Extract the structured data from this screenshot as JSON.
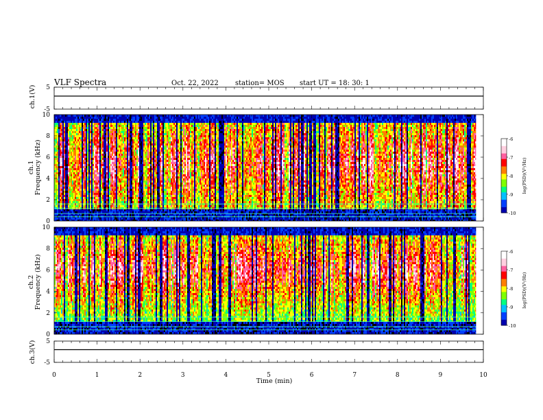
{
  "header": {
    "title": "VLF Spectra",
    "date": "Oct. 22, 2022",
    "station": "station= MOS",
    "start": "start  UT =   18: 30: 1"
  },
  "labels": {
    "ch1_voltage": "ch.1(V)",
    "ch3_voltage": "ch.3(V)",
    "ch1_prefix": "ch.1",
    "ch2_prefix": "ch.2",
    "frequency": "Frequency (kHz)",
    "time": "Time (min)",
    "colorbar": "log(PSD)(V²/Hz)"
  },
  "colors": {
    "colormap": [
      "#000000",
      "#0000b0",
      "#0040ff",
      "#00c0ff",
      "#00ff80",
      "#80ff00",
      "#ffff00",
      "#ff8000",
      "#ff0000",
      "#ff60a0",
      "#ffd0e0",
      "#ffffff"
    ]
  },
  "chart_data": [
    {
      "type": "line",
      "name": "ch1-voltage",
      "ylabel": "ch.1(V)",
      "xlim": [
        0,
        10
      ],
      "ylim": [
        -5,
        5
      ],
      "yticks": [
        "5",
        "-5"
      ],
      "x": [
        0,
        10
      ],
      "y": [
        0,
        0
      ]
    },
    {
      "type": "heatmap",
      "name": "ch1-spectrogram",
      "ylabel": "Frequency (kHz)",
      "xlim": [
        0,
        9.83
      ],
      "ylim": [
        0,
        10
      ],
      "yticks": [
        "0",
        "2",
        "4",
        "6",
        "8",
        "10"
      ],
      "colorbar": {
        "label": "log(PSD)(V²/Hz)",
        "range": [
          -10,
          -6
        ],
        "ticks": [
          "-6",
          "-7",
          "-8",
          "-9",
          "-10"
        ]
      }
    },
    {
      "type": "heatmap",
      "name": "ch2-spectrogram",
      "ylabel": "Frequency (kHz)",
      "xlim": [
        0,
        9.83
      ],
      "ylim": [
        0,
        10
      ],
      "yticks": [
        "0",
        "2",
        "4",
        "6",
        "8",
        "10"
      ],
      "colorbar": {
        "label": "log(PSD)(V²/Hz)",
        "range": [
          -10,
          -6
        ],
        "ticks": [
          "-6",
          "-7",
          "-8",
          "-9",
          "-10"
        ]
      }
    },
    {
      "type": "line",
      "name": "ch3-voltage",
      "ylabel": "ch.3(V)",
      "xlabel": "Time (min)",
      "xlim": [
        0,
        10
      ],
      "ylim": [
        -5,
        5
      ],
      "yticks": [
        "5",
        "-5"
      ],
      "xticks": [
        "0",
        "1",
        "2",
        "3",
        "4",
        "5",
        "6",
        "7",
        "8",
        "9",
        "10"
      ],
      "x": [
        0,
        10
      ],
      "y": [
        0,
        0
      ]
    }
  ]
}
